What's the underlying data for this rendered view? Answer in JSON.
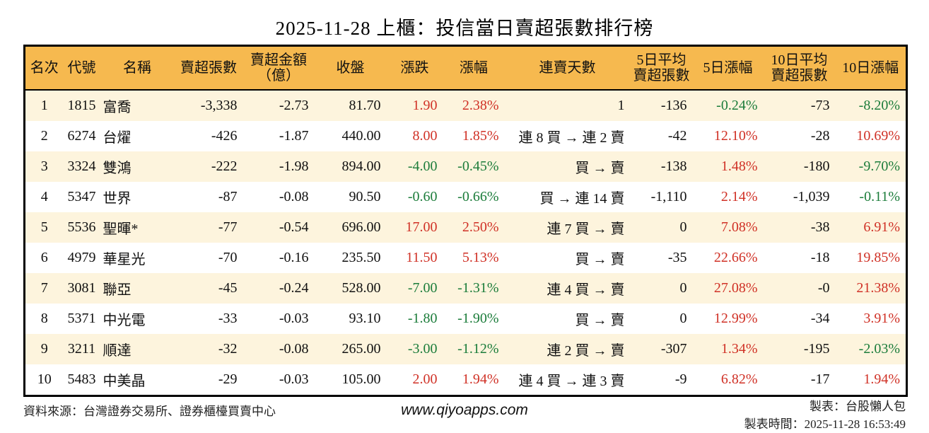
{
  "title": "2025-11-28 上櫃：投信當日賣超張數排行榜",
  "chart_data": {
    "type": "table",
    "title": "2025-11-28 上櫃：投信當日賣超張數排行榜",
    "columns": [
      "名次",
      "代號",
      "名稱",
      "賣超張數",
      "賣超金額\n（億）",
      "收盤",
      "漲跌",
      "漲幅",
      "連賣天數",
      "5日平均\n賣超張數",
      "5日漲幅",
      "10日平均\n賣超張數",
      "10日漲幅"
    ],
    "rows": [
      [
        "1",
        "1815",
        "富喬",
        "-3,338",
        "-2.73",
        "81.70",
        "1.90",
        "2.38%",
        "1",
        "-136",
        "-0.24%",
        "-73",
        "-8.20%"
      ],
      [
        "2",
        "6274",
        "台燿",
        "-426",
        "-1.87",
        "440.00",
        "8.00",
        "1.85%",
        "連 8 買 → 連 2 賣",
        "-42",
        "12.10%",
        "-28",
        "10.69%"
      ],
      [
        "3",
        "3324",
        "雙鴻",
        "-222",
        "-1.98",
        "894.00",
        "-4.00",
        "-0.45%",
        "買 → 賣",
        "-138",
        "1.48%",
        "-180",
        "-9.70%"
      ],
      [
        "4",
        "5347",
        "世界",
        "-87",
        "-0.08",
        "90.50",
        "-0.60",
        "-0.66%",
        "買 → 連 14 賣",
        "-1,110",
        "2.14%",
        "-1,039",
        "-0.11%"
      ],
      [
        "5",
        "5536",
        "聖暉*",
        "-77",
        "-0.54",
        "696.00",
        "17.00",
        "2.50%",
        "連 7 買 → 賣",
        "0",
        "7.08%",
        "-38",
        "6.91%"
      ],
      [
        "6",
        "4979",
        "華星光",
        "-70",
        "-0.16",
        "235.50",
        "11.50",
        "5.13%",
        "買 → 賣",
        "-35",
        "22.66%",
        "-18",
        "19.85%"
      ],
      [
        "7",
        "3081",
        "聯亞",
        "-45",
        "-0.24",
        "528.00",
        "-7.00",
        "-1.31%",
        "連 4 買 → 賣",
        "0",
        "27.08%",
        "-0",
        "21.38%"
      ],
      [
        "8",
        "5371",
        "中光電",
        "-33",
        "-0.03",
        "93.10",
        "-1.80",
        "-1.90%",
        "買 → 賣",
        "0",
        "12.99%",
        "-34",
        "3.91%"
      ],
      [
        "9",
        "3211",
        "順達",
        "-32",
        "-0.08",
        "265.00",
        "-3.00",
        "-1.12%",
        "連 2 買 → 賣",
        "-307",
        "1.34%",
        "-195",
        "-2.03%"
      ],
      [
        "10",
        "5483",
        "中美晶",
        "-29",
        "-0.03",
        "105.00",
        "2.00",
        "1.94%",
        "連 4 買 → 連 3 賣",
        "-9",
        "6.82%",
        "-17",
        "1.94%"
      ]
    ]
  },
  "footer": {
    "source": "資料來源：台灣證券交易所、證券櫃檯買賣中心",
    "website": "www.qiyoapps.com",
    "maker": "製表：台股懶人包",
    "generated": "製表時間：2025-11-28 16:53:49"
  },
  "colors": {
    "up_red": "#d03126",
    "down_green": "#1b7c3a",
    "header_bg": "#f6b94f",
    "row_stripe": "#fdf4dd"
  }
}
